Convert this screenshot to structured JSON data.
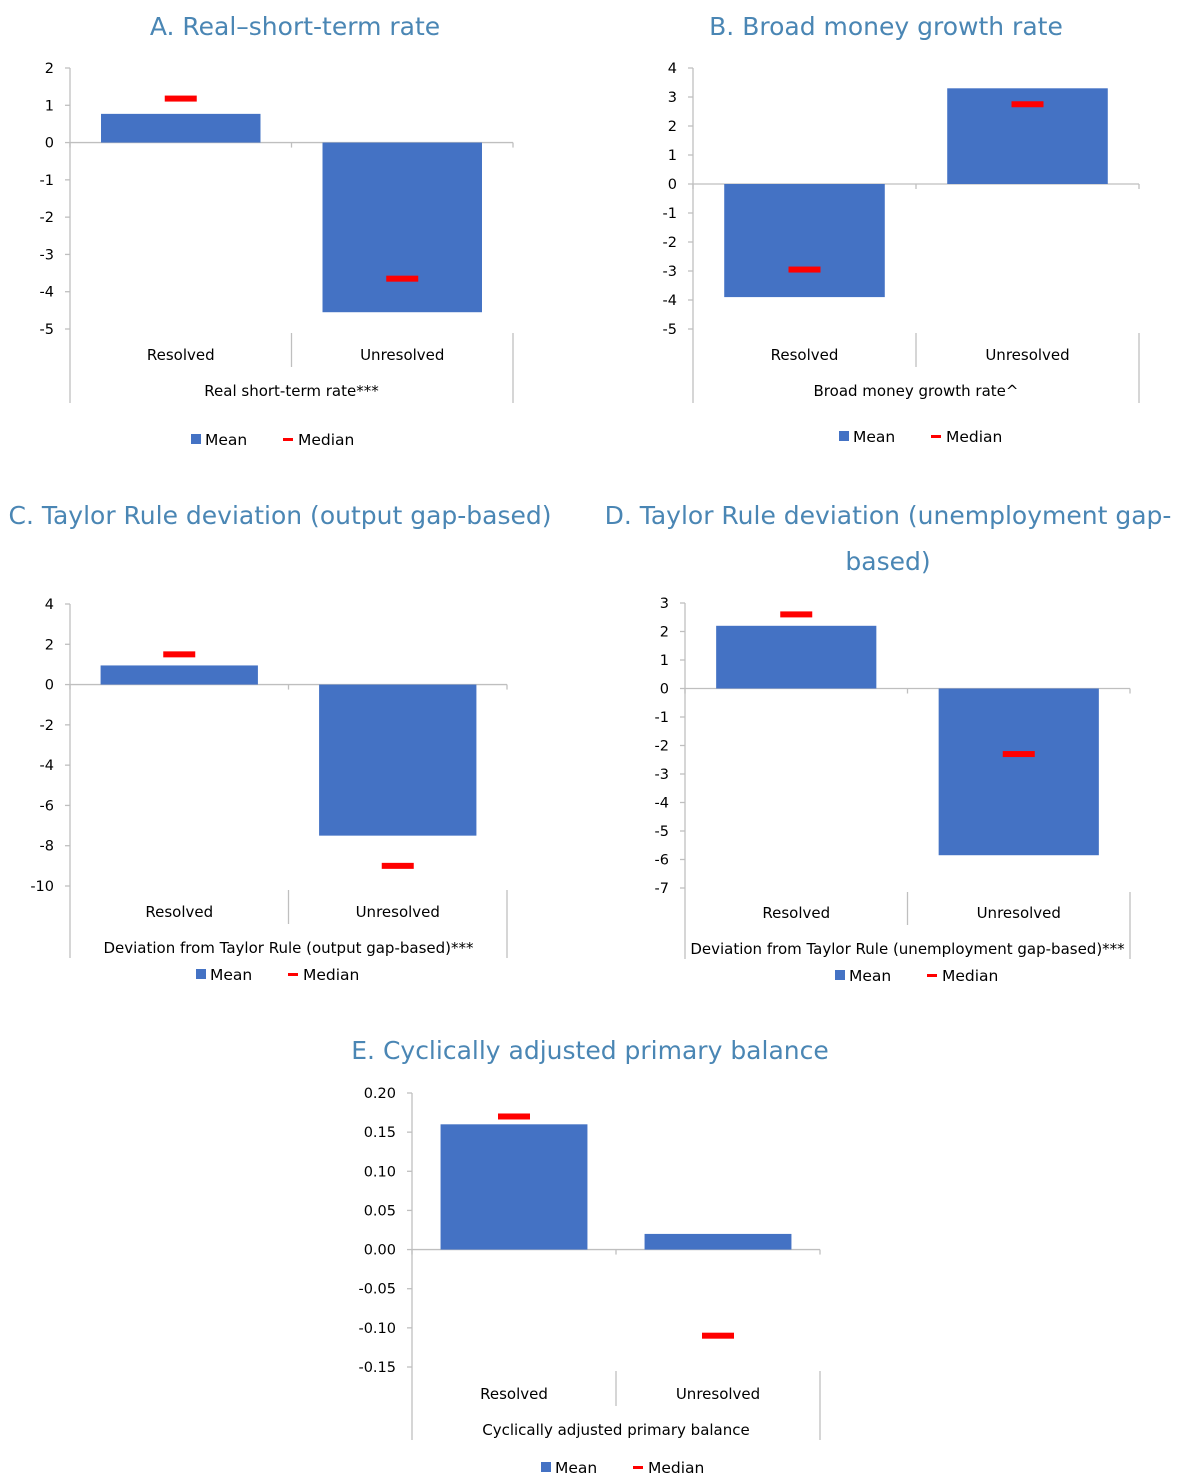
{
  "colors": {
    "mean": "#4472c4",
    "median": "#ff0000",
    "axis": "#bfbfbf",
    "title": "#4a86b4"
  },
  "legend": {
    "mean_label": "Mean",
    "median_label": "Median"
  },
  "chart_data": [
    {
      "panel_title": "A. Real–short-term rate",
      "type": "bar",
      "categories": [
        "Resolved",
        "Unresolved"
      ],
      "series": [
        {
          "name": "Mean",
          "values": [
            0.77,
            -4.55
          ]
        },
        {
          "name": "Median",
          "values": [
            1.18,
            -3.65
          ]
        }
      ],
      "xlabel": "Real short-term rate***",
      "ylim": [
        -5,
        2
      ],
      "yticks": [
        "2",
        "1",
        "0",
        "-1",
        "-2",
        "-3",
        "-4",
        "-5"
      ],
      "ytick_values": [
        2,
        1,
        0,
        -1,
        -2,
        -3,
        -4,
        -5
      ],
      "legend_position": "bottom",
      "grid": false
    },
    {
      "panel_title": "B. Broad money growth rate",
      "type": "bar",
      "categories": [
        "Resolved",
        "Unresolved"
      ],
      "series": [
        {
          "name": "Mean",
          "values": [
            -3.9,
            3.3
          ]
        },
        {
          "name": "Median",
          "values": [
            -2.95,
            2.75
          ]
        }
      ],
      "xlabel": "Broad money growth rate^",
      "ylim": [
        -5,
        4
      ],
      "yticks": [
        "4",
        "3",
        "2",
        "1",
        "0",
        "-1",
        "-2",
        "-3",
        "-4",
        "-5"
      ],
      "ytick_values": [
        4,
        3,
        2,
        1,
        0,
        -1,
        -2,
        -3,
        -4,
        -5
      ],
      "legend_position": "bottom",
      "grid": false
    },
    {
      "panel_title": "C. Taylor Rule deviation (output gap-based)",
      "type": "bar",
      "categories": [
        "Resolved",
        "Unresolved"
      ],
      "series": [
        {
          "name": "Mean",
          "values": [
            0.95,
            -7.5
          ]
        },
        {
          "name": "Median",
          "values": [
            1.5,
            -9.0
          ]
        }
      ],
      "xlabel": "Deviation from Taylor Rule (output gap-based)***",
      "ylim": [
        -10,
        4
      ],
      "yticks": [
        "4",
        "2",
        "0",
        "-2",
        "-4",
        "-6",
        "-8",
        "-10"
      ],
      "ytick_values": [
        4,
        2,
        0,
        -2,
        -4,
        -6,
        -8,
        -10
      ],
      "legend_position": "bottom",
      "grid": false
    },
    {
      "panel_title": "D. Taylor Rule deviation (unemployment gap-based)",
      "type": "bar",
      "categories": [
        "Resolved",
        "Unresolved"
      ],
      "series": [
        {
          "name": "Mean",
          "values": [
            2.2,
            -5.85
          ]
        },
        {
          "name": "Median",
          "values": [
            2.6,
            -2.3
          ]
        }
      ],
      "xlabel": "Deviation from Taylor Rule (unemployment gap-based)***",
      "ylim": [
        -7,
        3
      ],
      "yticks": [
        "3",
        "2",
        "1",
        "0",
        "-1",
        "-2",
        "-3",
        "-4",
        "-5",
        "-6",
        "-7"
      ],
      "ytick_values": [
        3,
        2,
        1,
        0,
        -1,
        -2,
        -3,
        -4,
        -5,
        -6,
        -7
      ],
      "legend_position": "bottom",
      "grid": false
    },
    {
      "panel_title": "E. Cyclically adjusted primary balance",
      "type": "bar",
      "categories": [
        "Resolved",
        "Unresolved"
      ],
      "series": [
        {
          "name": "Mean",
          "values": [
            0.16,
            0.02
          ]
        },
        {
          "name": "Median",
          "values": [
            0.17,
            -0.11
          ]
        }
      ],
      "xlabel": "Cyclically adjusted primary balance",
      "ylim": [
        -0.15,
        0.2
      ],
      "yticks": [
        "0.20",
        "0.15",
        "0.10",
        "0.05",
        "0.00",
        "-0.05",
        "-0.10",
        "-0.15"
      ],
      "ytick_values": [
        0.2,
        0.15,
        0.1,
        0.05,
        0.0,
        -0.05,
        -0.1,
        -0.15
      ],
      "legend_position": "bottom",
      "grid": false
    }
  ]
}
